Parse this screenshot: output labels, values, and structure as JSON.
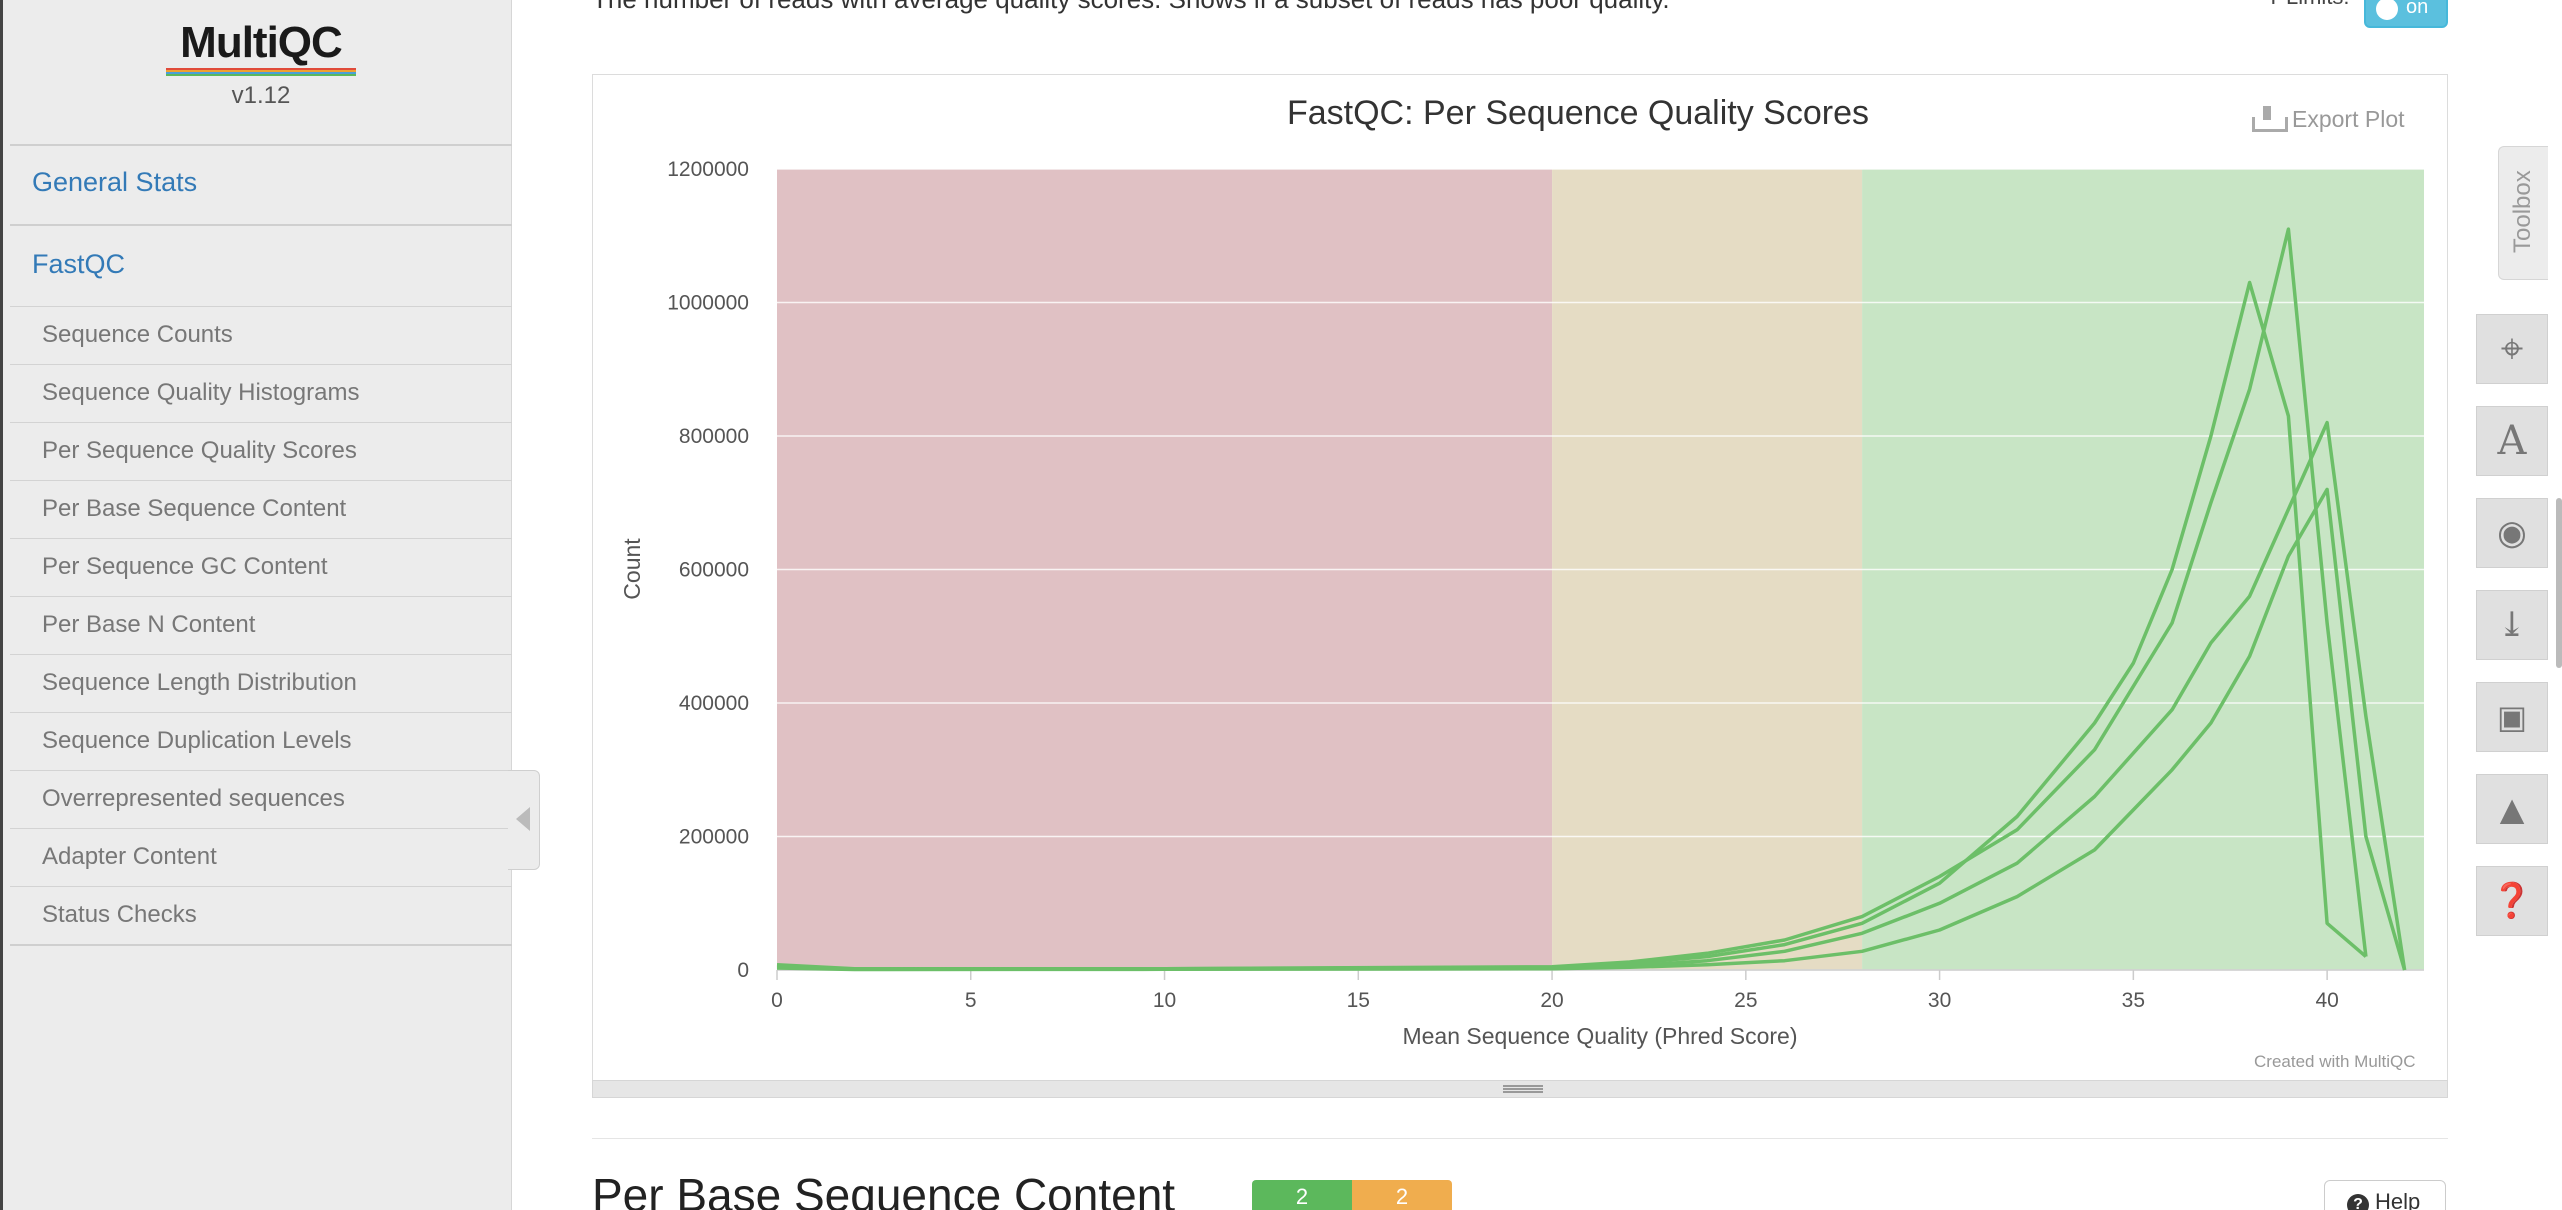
{
  "sidebar": {
    "logo": "MultiQC",
    "version": "v1.12",
    "nav_top": [
      "General Stats",
      "FastQC"
    ],
    "items": [
      "Sequence Counts",
      "Sequence Quality Histograms",
      "Per Sequence Quality Scores",
      "Per Base Sequence Content",
      "Per Sequence GC Content",
      "Per Base N Content",
      "Sequence Length Distribution",
      "Sequence Duplication Levels",
      "Overrepresented sequences",
      "Adapter Content",
      "Status Checks"
    ]
  },
  "main": {
    "intro_text": "The number of reads with average quality scores. Shows if a subset of reads has poor quality.",
    "ylimits_label": "Y-Limits:",
    "ylimits_toggle": "on",
    "export_label": "Export Plot",
    "credit": "Created with MultiQC",
    "next_section": {
      "title": "Per Base Sequence Content",
      "pass_count": "2",
      "warn_count": "2",
      "help_label": "Help"
    }
  },
  "toolbox": {
    "label": "Toolbox",
    "icons": [
      "pin-icon",
      "text-icon",
      "eye-hide-icon",
      "download-icon",
      "save-icon",
      "graduation-cap-icon",
      "help-circle-icon"
    ]
  },
  "colors": {
    "fail_band": "#e0c1c4",
    "warn_band": "#e5dcc4",
    "pass_band": "#c8e5c5",
    "line": "#6cbf68",
    "link": "#337ab7"
  },
  "chart_data": {
    "type": "line",
    "title": "FastQC: Per Sequence Quality Scores",
    "xlabel": "Mean Sequence Quality (Phred Score)",
    "ylabel": "Count",
    "xlim": [
      0,
      42.5
    ],
    "ylim": [
      0,
      1200000
    ],
    "xticks": [
      0,
      5,
      10,
      15,
      20,
      25,
      30,
      35,
      40
    ],
    "yticks": [
      0,
      200000,
      400000,
      600000,
      800000,
      1000000,
      1200000
    ],
    "bands": [
      {
        "from": 0,
        "to": 20,
        "status": "fail"
      },
      {
        "from": 20,
        "to": 28,
        "status": "warn"
      },
      {
        "from": 28,
        "to": 42.5,
        "status": "pass"
      }
    ],
    "series": [
      {
        "values": [
          [
            0,
            8000
          ],
          [
            2,
            2000
          ],
          [
            10,
            2000
          ],
          [
            20,
            5000
          ],
          [
            22,
            12000
          ],
          [
            24,
            25000
          ],
          [
            26,
            45000
          ],
          [
            28,
            80000
          ],
          [
            30,
            140000
          ],
          [
            32,
            210000
          ],
          [
            34,
            330000
          ],
          [
            36,
            520000
          ],
          [
            37,
            700000
          ],
          [
            38,
            870000
          ],
          [
            39,
            1110000
          ],
          [
            40,
            520000
          ],
          [
            41,
            20000
          ]
        ]
      },
      {
        "values": [
          [
            0,
            6000
          ],
          [
            2,
            1500
          ],
          [
            10,
            2000
          ],
          [
            20,
            4000
          ],
          [
            22,
            10000
          ],
          [
            24,
            20000
          ],
          [
            26,
            38000
          ],
          [
            28,
            70000
          ],
          [
            30,
            130000
          ],
          [
            32,
            230000
          ],
          [
            34,
            370000
          ],
          [
            35,
            460000
          ],
          [
            36,
            600000
          ],
          [
            37,
            800000
          ],
          [
            38,
            1030000
          ],
          [
            39,
            830000
          ],
          [
            40,
            70000
          ],
          [
            41,
            20000
          ]
        ]
      },
      {
        "values": [
          [
            0,
            4000
          ],
          [
            2,
            1000
          ],
          [
            10,
            1500
          ],
          [
            20,
            3000
          ],
          [
            22,
            6000
          ],
          [
            24,
            14000
          ],
          [
            26,
            28000
          ],
          [
            28,
            55000
          ],
          [
            30,
            100000
          ],
          [
            32,
            160000
          ],
          [
            34,
            260000
          ],
          [
            36,
            390000
          ],
          [
            37,
            490000
          ],
          [
            38,
            560000
          ],
          [
            39,
            690000
          ],
          [
            40,
            820000
          ],
          [
            41,
            380000
          ],
          [
            42,
            0
          ]
        ]
      },
      {
        "values": [
          [
            0,
            3000
          ],
          [
            2,
            800
          ],
          [
            10,
            1000
          ],
          [
            20,
            2000
          ],
          [
            22,
            4000
          ],
          [
            24,
            8000
          ],
          [
            26,
            14000
          ],
          [
            28,
            28000
          ],
          [
            30,
            60000
          ],
          [
            32,
            110000
          ],
          [
            34,
            180000
          ],
          [
            36,
            300000
          ],
          [
            37,
            370000
          ],
          [
            38,
            470000
          ],
          [
            39,
            620000
          ],
          [
            40,
            720000
          ],
          [
            41,
            200000
          ],
          [
            42,
            0
          ]
        ]
      }
    ]
  }
}
